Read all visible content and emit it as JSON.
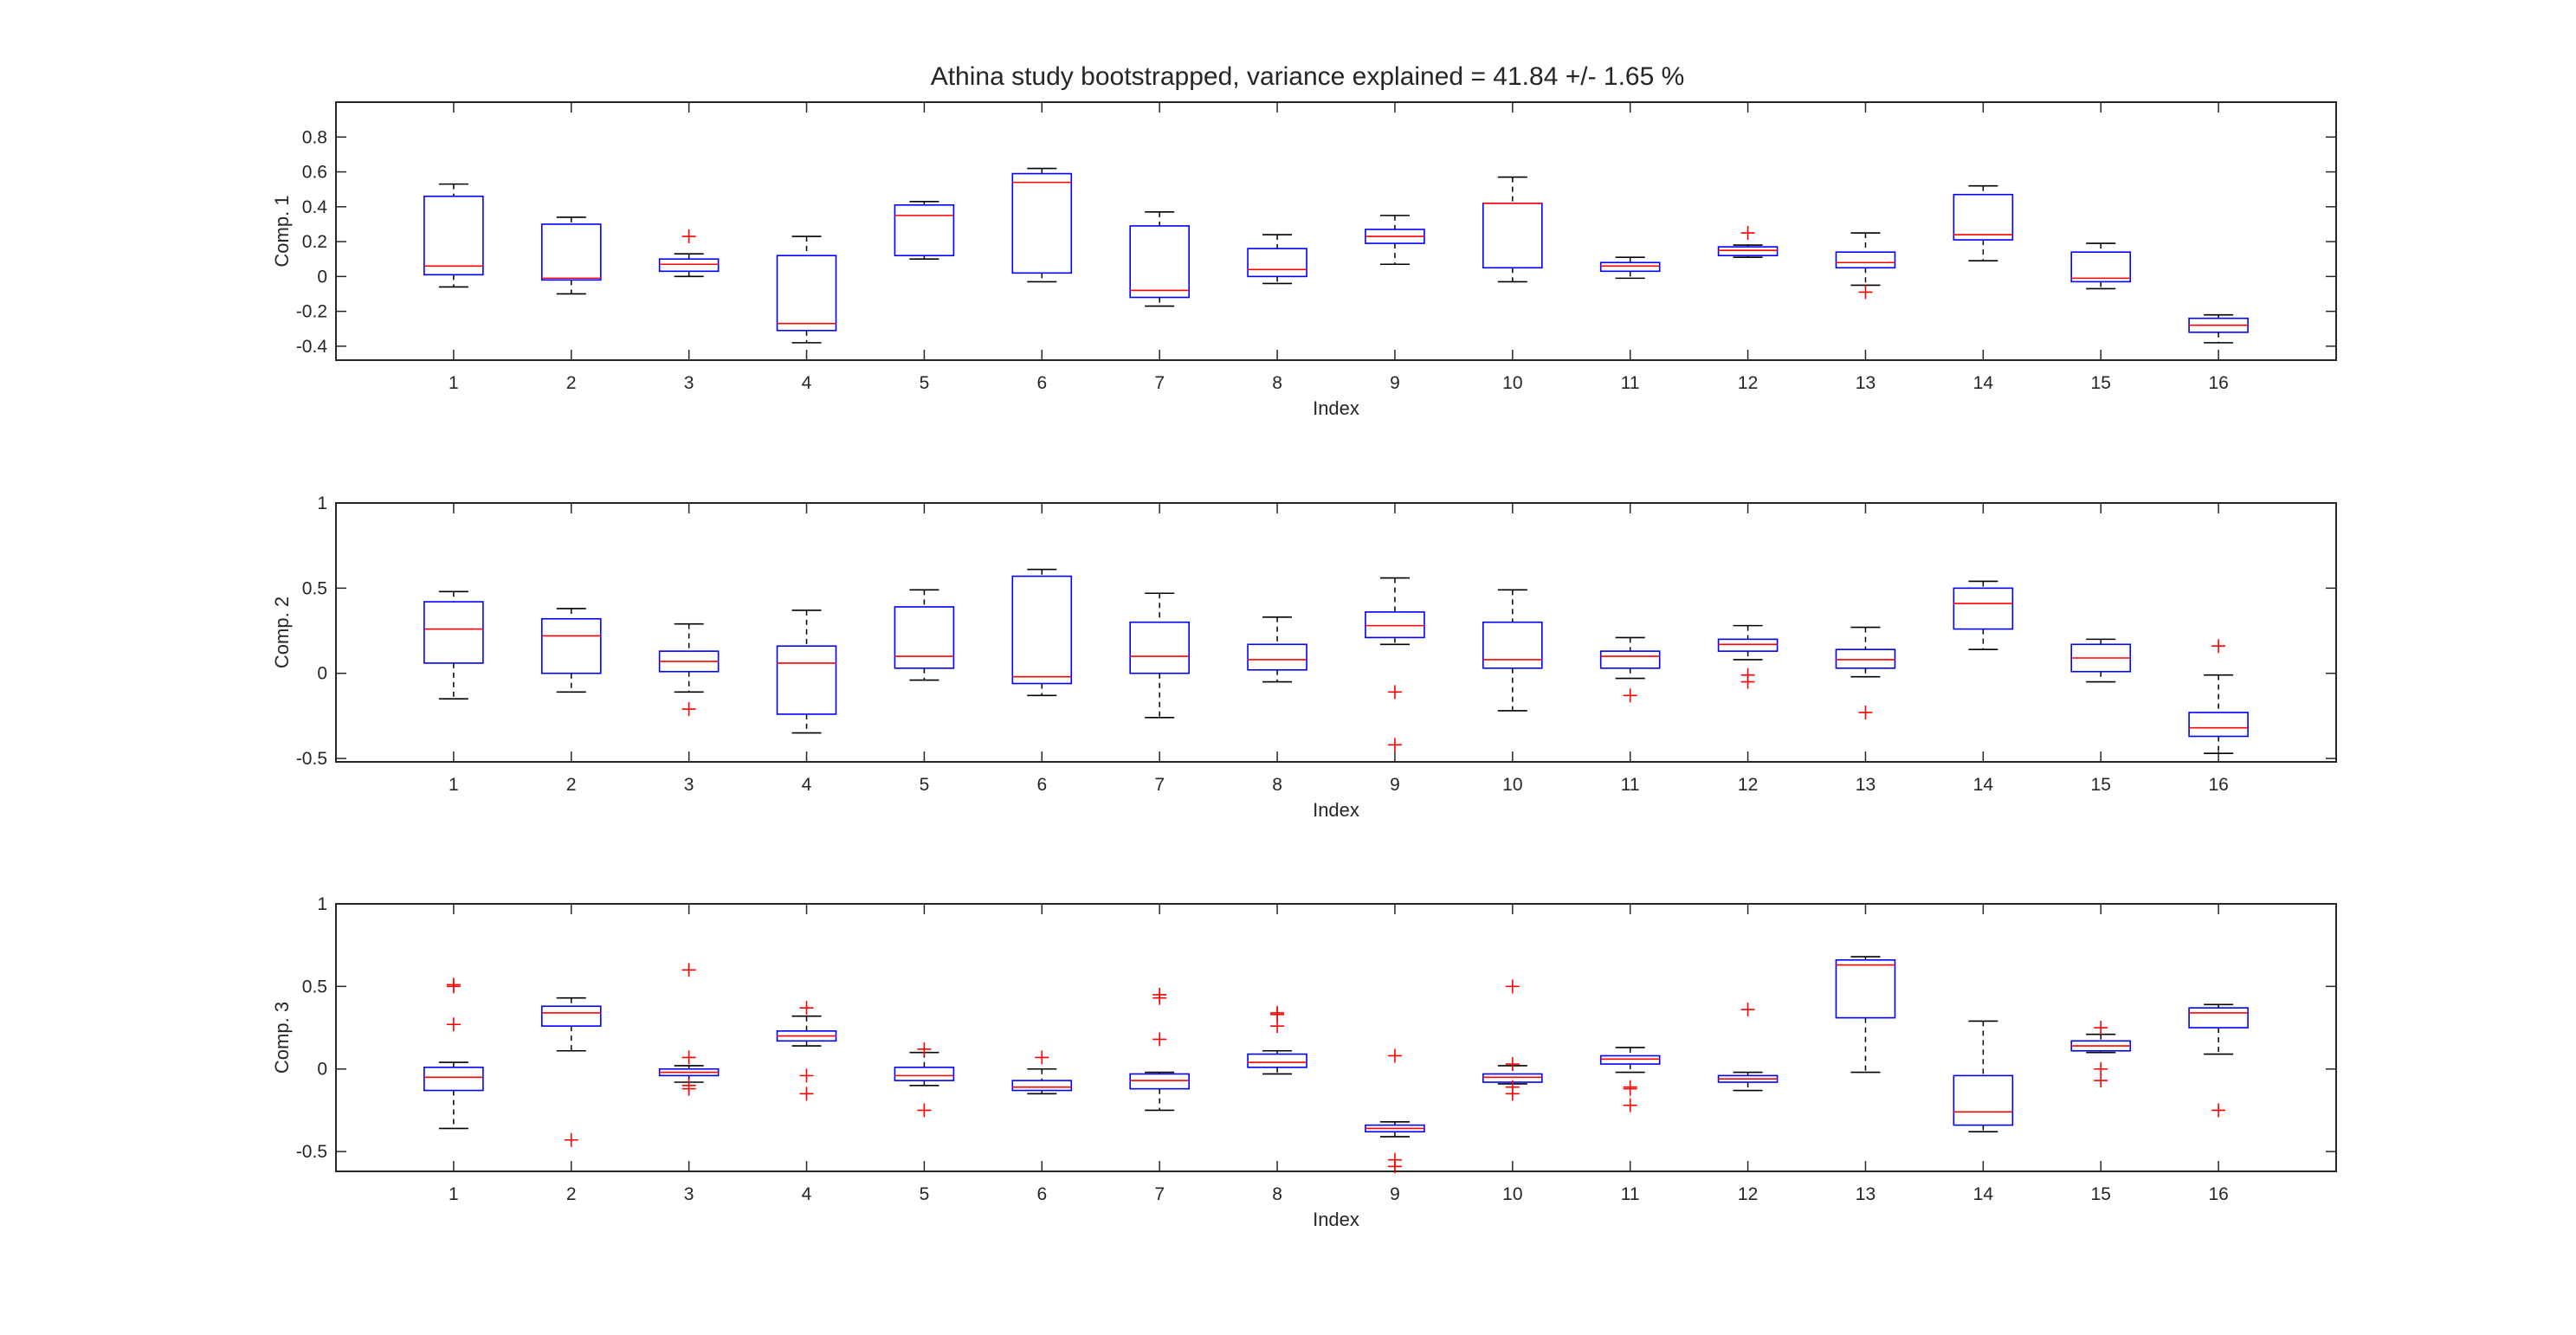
{
  "colors": {
    "box": "#0000ff",
    "median": "#ff0000",
    "whisker": "#000000",
    "outlier": "#ff0000",
    "axes": "#262626"
  },
  "chart_data": {
    "type": "boxplot",
    "title": "Athina study bootstrapped, variance explained = 41.84 +/- 1.65 %",
    "grid": false,
    "panels": [
      {
        "ylabel": "Comp. 1",
        "xlabel": "Index",
        "ylim": [
          -0.48,
          1.0
        ],
        "yticks": [
          -0.4,
          -0.2,
          0,
          0.2,
          0.4,
          0.6,
          0.8
        ],
        "ytick_labels": [
          "-0.4",
          "-0.2",
          "0",
          "0.2",
          "0.4",
          "0.6",
          "0.8"
        ],
        "categories": [
          "1",
          "2",
          "3",
          "4",
          "5",
          "6",
          "7",
          "8",
          "9",
          "10",
          "11",
          "12",
          "13",
          "14",
          "15",
          "16"
        ],
        "boxes": [
          {
            "lw": -0.06,
            "q1": 0.01,
            "med": 0.06,
            "q3": 0.46,
            "uw": 0.53,
            "out": []
          },
          {
            "lw": -0.1,
            "q1": -0.02,
            "med": -0.01,
            "q3": 0.3,
            "uw": 0.34,
            "out": []
          },
          {
            "lw": 0.0,
            "q1": 0.03,
            "med": 0.07,
            "q3": 0.1,
            "uw": 0.13,
            "out": [
              0.23
            ]
          },
          {
            "lw": -0.38,
            "q1": -0.31,
            "med": -0.27,
            "q3": 0.12,
            "uw": 0.23,
            "out": []
          },
          {
            "lw": 0.1,
            "q1": 0.12,
            "med": 0.35,
            "q3": 0.41,
            "uw": 0.43,
            "out": []
          },
          {
            "lw": -0.03,
            "q1": 0.02,
            "med": 0.54,
            "q3": 0.59,
            "uw": 0.62,
            "out": []
          },
          {
            "lw": -0.17,
            "q1": -0.12,
            "med": -0.08,
            "q3": 0.29,
            "uw": 0.37,
            "out": []
          },
          {
            "lw": -0.04,
            "q1": 0.0,
            "med": 0.04,
            "q3": 0.16,
            "uw": 0.24,
            "out": []
          },
          {
            "lw": 0.07,
            "q1": 0.19,
            "med": 0.23,
            "q3": 0.27,
            "uw": 0.35,
            "out": []
          },
          {
            "lw": -0.03,
            "q1": 0.05,
            "med": 0.42,
            "q3": 0.42,
            "uw": 0.57,
            "out": []
          },
          {
            "lw": -0.01,
            "q1": 0.03,
            "med": 0.06,
            "q3": 0.08,
            "uw": 0.11,
            "out": []
          },
          {
            "lw": 0.11,
            "q1": 0.12,
            "med": 0.15,
            "q3": 0.17,
            "uw": 0.18,
            "out": [
              0.25
            ]
          },
          {
            "lw": -0.05,
            "q1": 0.05,
            "med": 0.08,
            "q3": 0.14,
            "uw": 0.25,
            "out": [
              -0.09
            ]
          },
          {
            "lw": 0.09,
            "q1": 0.21,
            "med": 0.24,
            "q3": 0.47,
            "uw": 0.52,
            "out": []
          },
          {
            "lw": -0.07,
            "q1": -0.03,
            "med": -0.01,
            "q3": 0.14,
            "uw": 0.19,
            "out": []
          },
          {
            "lw": -0.38,
            "q1": -0.32,
            "med": -0.28,
            "q3": -0.24,
            "uw": -0.22,
            "out": []
          }
        ]
      },
      {
        "ylabel": "Comp. 2",
        "xlabel": "Index",
        "ylim": [
          -0.52,
          1.0
        ],
        "yticks": [
          -0.5,
          0,
          0.5,
          1
        ],
        "ytick_labels": [
          "-0.5",
          "0",
          "0.5",
          "1"
        ],
        "categories": [
          "1",
          "2",
          "3",
          "4",
          "5",
          "6",
          "7",
          "8",
          "9",
          "10",
          "11",
          "12",
          "13",
          "14",
          "15",
          "16"
        ],
        "boxes": [
          {
            "lw": -0.15,
            "q1": 0.06,
            "med": 0.26,
            "q3": 0.42,
            "uw": 0.48,
            "out": []
          },
          {
            "lw": -0.11,
            "q1": 0.0,
            "med": 0.22,
            "q3": 0.32,
            "uw": 0.38,
            "out": []
          },
          {
            "lw": -0.11,
            "q1": 0.01,
            "med": 0.07,
            "q3": 0.13,
            "uw": 0.29,
            "out": [
              -0.21
            ]
          },
          {
            "lw": -0.35,
            "q1": -0.24,
            "med": 0.06,
            "q3": 0.16,
            "uw": 0.37,
            "out": []
          },
          {
            "lw": -0.04,
            "q1": 0.03,
            "med": 0.1,
            "q3": 0.39,
            "uw": 0.49,
            "out": []
          },
          {
            "lw": -0.13,
            "q1": -0.06,
            "med": -0.02,
            "q3": 0.57,
            "uw": 0.61,
            "out": []
          },
          {
            "lw": -0.26,
            "q1": 0.0,
            "med": 0.1,
            "q3": 0.3,
            "uw": 0.47,
            "out": []
          },
          {
            "lw": -0.05,
            "q1": 0.02,
            "med": 0.08,
            "q3": 0.17,
            "uw": 0.33,
            "out": []
          },
          {
            "lw": 0.17,
            "q1": 0.21,
            "med": 0.28,
            "q3": 0.36,
            "uw": 0.56,
            "out": [
              -0.11,
              -0.42
            ]
          },
          {
            "lw": -0.22,
            "q1": 0.03,
            "med": 0.08,
            "q3": 0.3,
            "uw": 0.49,
            "out": []
          },
          {
            "lw": -0.03,
            "q1": 0.03,
            "med": 0.1,
            "q3": 0.13,
            "uw": 0.21,
            "out": [
              -0.13
            ]
          },
          {
            "lw": 0.08,
            "q1": 0.13,
            "med": 0.17,
            "q3": 0.2,
            "uw": 0.28,
            "out": [
              -0.01,
              -0.05
            ]
          },
          {
            "lw": -0.02,
            "q1": 0.03,
            "med": 0.08,
            "q3": 0.14,
            "uw": 0.27,
            "out": [
              -0.23
            ]
          },
          {
            "lw": 0.14,
            "q1": 0.26,
            "med": 0.41,
            "q3": 0.5,
            "uw": 0.54,
            "out": []
          },
          {
            "lw": -0.05,
            "q1": 0.01,
            "med": 0.09,
            "q3": 0.17,
            "uw": 0.2,
            "out": []
          },
          {
            "lw": -0.47,
            "q1": -0.37,
            "med": -0.32,
            "q3": -0.23,
            "uw": -0.01,
            "out": [
              0.16
            ]
          }
        ]
      },
      {
        "ylabel": "Comp. 3",
        "xlabel": "Index",
        "ylim": [
          -0.62,
          1.0
        ],
        "yticks": [
          -0.5,
          0,
          0.5,
          1
        ],
        "ytick_labels": [
          "-0.5",
          "0",
          "0.5",
          "1"
        ],
        "categories": [
          "1",
          "2",
          "3",
          "4",
          "5",
          "6",
          "7",
          "8",
          "9",
          "10",
          "11",
          "12",
          "13",
          "14",
          "15",
          "16"
        ],
        "boxes": [
          {
            "lw": -0.36,
            "q1": -0.13,
            "med": -0.05,
            "q3": 0.01,
            "uw": 0.04,
            "out": [
              0.51,
              0.5,
              0.27
            ]
          },
          {
            "lw": 0.11,
            "q1": 0.26,
            "med": 0.34,
            "q3": 0.38,
            "uw": 0.43,
            "out": [
              -0.43
            ]
          },
          {
            "lw": -0.08,
            "q1": -0.04,
            "med": -0.02,
            "q3": 0.0,
            "uw": 0.02,
            "out": [
              0.6,
              0.07,
              -0.1,
              -0.12
            ]
          },
          {
            "lw": 0.14,
            "q1": 0.17,
            "med": 0.2,
            "q3": 0.23,
            "uw": 0.32,
            "out": [
              0.37,
              -0.04,
              -0.15
            ]
          },
          {
            "lw": -0.1,
            "q1": -0.07,
            "med": -0.04,
            "q3": 0.01,
            "uw": 0.1,
            "out": [
              0.12,
              -0.25
            ]
          },
          {
            "lw": -0.15,
            "q1": -0.13,
            "med": -0.11,
            "q3": -0.07,
            "uw": 0.0,
            "out": [
              0.07
            ]
          },
          {
            "lw": -0.25,
            "q1": -0.12,
            "med": -0.07,
            "q3": -0.03,
            "uw": -0.02,
            "out": [
              0.45,
              0.43,
              0.18
            ]
          },
          {
            "lw": -0.03,
            "q1": 0.01,
            "med": 0.04,
            "q3": 0.09,
            "uw": 0.11,
            "out": [
              0.34,
              0.33,
              0.26
            ]
          },
          {
            "lw": -0.41,
            "q1": -0.38,
            "med": -0.36,
            "q3": -0.34,
            "uw": -0.32,
            "out": [
              0.08,
              -0.55,
              -0.59
            ]
          },
          {
            "lw": -0.09,
            "q1": -0.08,
            "med": -0.05,
            "q3": -0.03,
            "uw": 0.02,
            "out": [
              0.5,
              0.03,
              -0.11,
              -0.15
            ]
          },
          {
            "lw": -0.02,
            "q1": 0.03,
            "med": 0.06,
            "q3": 0.08,
            "uw": 0.13,
            "out": [
              -0.11,
              -0.12,
              -0.22
            ]
          },
          {
            "lw": -0.13,
            "q1": -0.08,
            "med": -0.06,
            "q3": -0.04,
            "uw": -0.02,
            "out": [
              0.36
            ]
          },
          {
            "lw": -0.02,
            "q1": 0.31,
            "med": 0.63,
            "q3": 0.66,
            "uw": 0.68,
            "out": []
          },
          {
            "lw": -0.38,
            "q1": -0.34,
            "med": -0.26,
            "q3": -0.04,
            "uw": 0.29,
            "out": []
          },
          {
            "lw": 0.1,
            "q1": 0.11,
            "med": 0.14,
            "q3": 0.17,
            "uw": 0.21,
            "out": [
              0.25,
              0.0,
              -0.07
            ]
          },
          {
            "lw": 0.09,
            "q1": 0.25,
            "med": 0.34,
            "q3": 0.37,
            "uw": 0.39,
            "out": [
              -0.25
            ]
          }
        ]
      }
    ]
  }
}
